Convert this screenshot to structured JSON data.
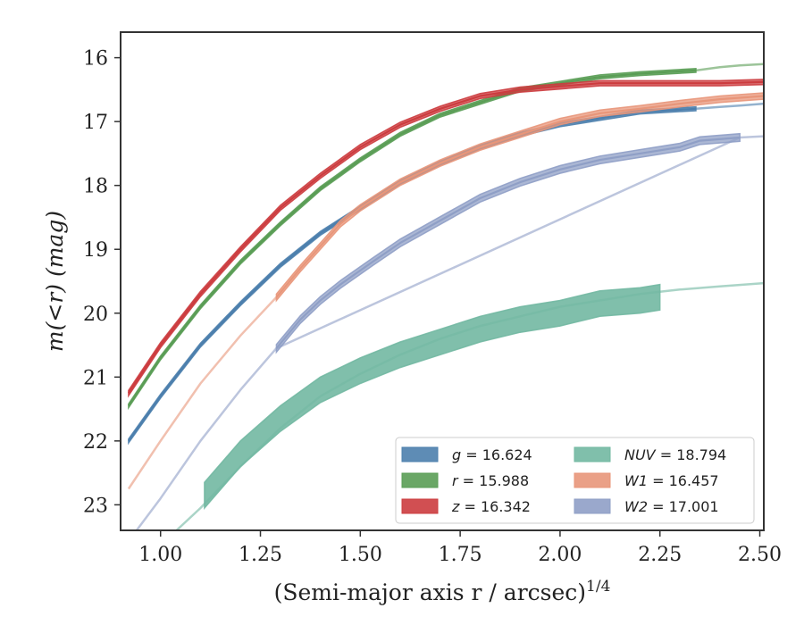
{
  "chart_data": {
    "type": "line",
    "title": "",
    "xlabel": "(Semi-major axis r / arcsec)",
    "xlabel_exponent": "1/4",
    "ylabel": "m(<r) (mag)",
    "xlim": [
      0.9,
      2.51
    ],
    "ylim": [
      23.4,
      15.6
    ],
    "y_inverted": true,
    "grid": false,
    "legend_position": "lower-right",
    "legend_columns": 2,
    "x_ticks": [
      1.0,
      1.25,
      1.5,
      1.75,
      2.0,
      2.25,
      2.5
    ],
    "x_tick_labels": [
      "1.00",
      "1.25",
      "1.50",
      "1.75",
      "2.00",
      "2.25",
      "2.50"
    ],
    "y_ticks": [
      16,
      17,
      18,
      19,
      20,
      21,
      22,
      23
    ],
    "y_tick_labels": [
      "16",
      "17",
      "18",
      "19",
      "20",
      "21",
      "22",
      "23"
    ],
    "series": [
      {
        "band": "g",
        "legend_value": "16.624",
        "color": "#4c7fad",
        "x": [
          0.92,
          1.0,
          1.1,
          1.2,
          1.3,
          1.4,
          1.5,
          1.6,
          1.7,
          1.8,
          1.9,
          2.0,
          2.1,
          2.2,
          2.34
        ],
        "y": [
          22.0,
          21.3,
          20.5,
          19.85,
          19.25,
          18.75,
          18.35,
          17.95,
          17.65,
          17.4,
          17.2,
          17.05,
          16.95,
          16.85,
          16.8
        ],
        "band_width": 0.06,
        "model_x": [
          2.34,
          2.4,
          2.45,
          2.51
        ],
        "model_y": [
          16.8,
          16.77,
          16.75,
          16.72
        ]
      },
      {
        "band": "r",
        "legend_value": "15.988",
        "color": "#5a9d55",
        "x": [
          0.92,
          1.0,
          1.1,
          1.2,
          1.3,
          1.4,
          1.5,
          1.6,
          1.7,
          1.8,
          1.9,
          2.0,
          2.1,
          2.2,
          2.34
        ],
        "y": [
          21.45,
          20.7,
          19.9,
          19.2,
          18.6,
          18.05,
          17.6,
          17.2,
          16.9,
          16.7,
          16.5,
          16.4,
          16.3,
          16.25,
          16.2
        ],
        "band_width": 0.06,
        "model_x": [
          2.34,
          2.4,
          2.45,
          2.51
        ],
        "model_y": [
          16.2,
          16.15,
          16.12,
          16.1
        ]
      },
      {
        "band": "z",
        "legend_value": "16.342",
        "color": "#cc3c3f",
        "x": [
          0.92,
          1.0,
          1.1,
          1.2,
          1.3,
          1.4,
          1.5,
          1.6,
          1.7,
          1.8,
          1.9,
          2.0,
          2.1,
          2.2,
          2.3,
          2.4,
          2.51
        ],
        "y": [
          21.25,
          20.5,
          19.7,
          19.0,
          18.35,
          17.85,
          17.4,
          17.05,
          16.8,
          16.6,
          16.5,
          16.45,
          16.4,
          16.4,
          16.4,
          16.4,
          16.38
        ],
        "band_width": 0.08,
        "model_x": [],
        "model_y": []
      },
      {
        "band": "NUV",
        "legend_value": "18.794",
        "color": "#72b8a2",
        "x": [
          1.11,
          1.2,
          1.3,
          1.4,
          1.5,
          1.6,
          1.7,
          1.8,
          1.9,
          2.0,
          2.1,
          2.2,
          2.25
        ],
        "y": [
          22.85,
          22.2,
          21.65,
          21.2,
          20.9,
          20.65,
          20.45,
          20.25,
          20.1,
          20.0,
          19.85,
          19.8,
          19.75
        ],
        "band_width": 0.4,
        "model_x": [
          1.04,
          1.1,
          1.2,
          1.3,
          1.4,
          1.5,
          1.6,
          1.7,
          1.8,
          1.9,
          2.0,
          2.1,
          2.2,
          2.3,
          2.4,
          2.51
        ],
        "model_y": [
          23.4,
          23.05,
          22.4,
          21.8,
          21.3,
          20.95,
          20.65,
          20.4,
          20.2,
          20.05,
          19.9,
          19.8,
          19.7,
          19.63,
          19.58,
          19.53
        ]
      },
      {
        "band": "W1",
        "legend_value": "16.457",
        "color": "#e8967a",
        "x": [
          1.29,
          1.35,
          1.4,
          1.45,
          1.5,
          1.6,
          1.7,
          1.8,
          1.9,
          2.0,
          2.1,
          2.2,
          2.3,
          2.4,
          2.51
        ],
        "y": [
          19.75,
          19.3,
          18.95,
          18.6,
          18.35,
          17.95,
          17.65,
          17.4,
          17.2,
          17.0,
          16.87,
          16.8,
          16.72,
          16.65,
          16.6
        ],
        "band_width": 0.1,
        "model_x": [
          0.92,
          1.0,
          1.1,
          1.2,
          1.29
        ],
        "model_y": [
          22.75,
          22.0,
          21.1,
          20.35,
          19.75
        ]
      },
      {
        "band": "W2",
        "legend_value": "17.001",
        "color": "#8f9fc6",
        "x": [
          1.29,
          1.35,
          1.4,
          1.45,
          1.53,
          1.6,
          1.7,
          1.8,
          1.9,
          2.0,
          2.1,
          2.2,
          2.3,
          2.35,
          2.45
        ],
        "y": [
          20.55,
          20.1,
          19.8,
          19.55,
          19.2,
          18.9,
          18.55,
          18.2,
          17.95,
          17.75,
          17.6,
          17.5,
          17.4,
          17.3,
          17.25
        ],
        "band_width": 0.12,
        "model_x": [
          0.94,
          1.0,
          1.1,
          1.2,
          1.29,
          2.45,
          2.51
        ],
        "model_y": [
          23.4,
          22.9,
          22.0,
          21.2,
          20.55,
          17.25,
          17.23
        ]
      }
    ]
  }
}
